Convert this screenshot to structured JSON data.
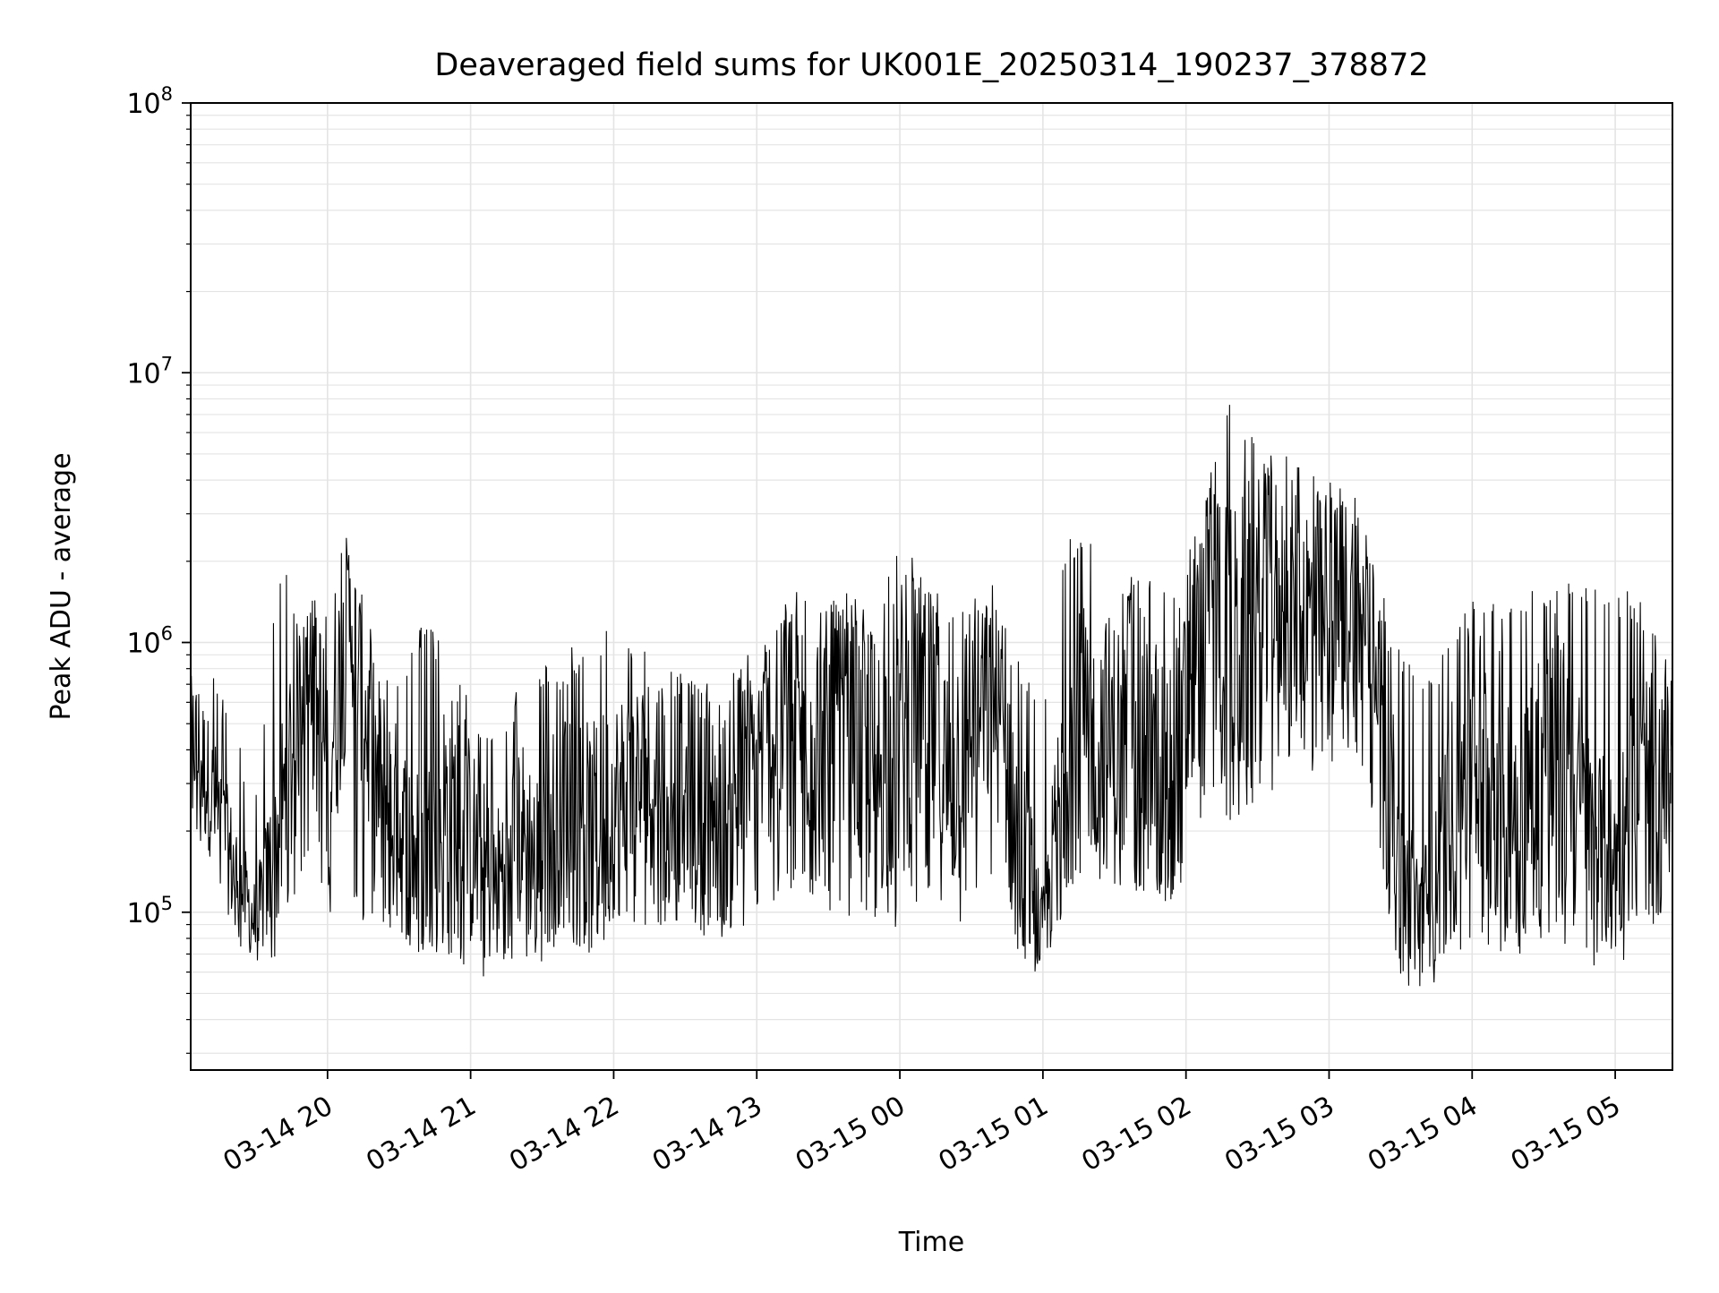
{
  "chart_data": {
    "type": "line",
    "title": "Deaveraged field sums for UK001E_20250314_190237_378872",
    "xlabel": "Time",
    "ylabel": "Peak ADU - average",
    "x_range": [
      "2025-03-14 19:02:37",
      "2025-03-15 05:24:00"
    ],
    "y_scale": "log",
    "ylim": [
      26000,
      100000000
    ],
    "grid": true,
    "line_color": "#000000",
    "x_ticks": [
      "03-14 20",
      "03-14 21",
      "03-14 22",
      "03-14 23",
      "03-15 00",
      "03-15 01",
      "03-15 02",
      "03-15 03",
      "03-15 04",
      "03-15 05"
    ],
    "x_tick_times": [
      "2025-03-14 20:00",
      "2025-03-14 21:00",
      "2025-03-14 22:00",
      "2025-03-14 23:00",
      "2025-03-15 00:00",
      "2025-03-15 01:00",
      "2025-03-15 02:00",
      "2025-03-15 03:00",
      "2025-03-15 04:00",
      "2025-03-15 05:00"
    ],
    "y_ticks": [
      {
        "base": "10",
        "exp": "5",
        "value": 100000
      },
      {
        "base": "10",
        "exp": "6",
        "value": 1000000
      },
      {
        "base": "10",
        "exp": "7",
        "value": 10000000
      },
      {
        "base": "10",
        "exp": "8",
        "value": 100000000
      }
    ],
    "series": [
      {
        "x": [
          "2025-03-14 19:02",
          "2025-03-14 19:10",
          "2025-03-14 19:20",
          "2025-03-14 19:30",
          "2025-03-14 19:40",
          "2025-03-14 19:50",
          "2025-03-14 20:00",
          "2025-03-14 20:10",
          "2025-03-14 20:20",
          "2025-03-14 20:30",
          "2025-03-14 20:40",
          "2025-03-14 20:50",
          "2025-03-14 21:00",
          "2025-03-14 21:10",
          "2025-03-14 21:20",
          "2025-03-14 21:30",
          "2025-03-14 21:40",
          "2025-03-14 21:50",
          "2025-03-14 22:00",
          "2025-03-14 22:10",
          "2025-03-14 22:20",
          "2025-03-14 22:30",
          "2025-03-14 22:40",
          "2025-03-14 22:50",
          "2025-03-14 23:00",
          "2025-03-14 23:10",
          "2025-03-14 23:20",
          "2025-03-14 23:30",
          "2025-03-14 23:40",
          "2025-03-14 23:50",
          "2025-03-15 00:00",
          "2025-03-15 00:10",
          "2025-03-15 00:20",
          "2025-03-15 00:30",
          "2025-03-15 00:40",
          "2025-03-15 00:50",
          "2025-03-15 01:00",
          "2025-03-15 01:10",
          "2025-03-15 01:20",
          "2025-03-15 01:30",
          "2025-03-15 01:40",
          "2025-03-15 01:50",
          "2025-03-15 02:00",
          "2025-03-15 02:10",
          "2025-03-15 02:20",
          "2025-03-15 02:30",
          "2025-03-15 02:40",
          "2025-03-15 02:50",
          "2025-03-15 03:00",
          "2025-03-15 03:10",
          "2025-03-15 03:20",
          "2025-03-15 03:30",
          "2025-03-15 03:40",
          "2025-03-15 03:50",
          "2025-03-15 04:00",
          "2025-03-15 04:10",
          "2025-03-15 04:20",
          "2025-03-15 04:30",
          "2025-03-15 04:40",
          "2025-03-15 04:50",
          "2025-03-15 05:00",
          "2025-03-15 05:10",
          "2025-03-15 05:20",
          "2025-03-15 05:24"
        ],
        "y": [
          500000,
          300000,
          150000,
          90000,
          200000,
          700000,
          400000,
          1200000,
          300000,
          200000,
          150000,
          250000,
          180000,
          120000,
          200000,
          150000,
          300000,
          200000,
          250000,
          280000,
          350000,
          300000,
          280000,
          200000,
          400000,
          450000,
          500000,
          450000,
          400000,
          350000,
          450000,
          600000,
          300000,
          500000,
          600000,
          200000,
          80000,
          400000,
          500000,
          400000,
          450000,
          350000,
          500000,
          1500000,
          900000,
          1200000,
          1500000,
          1200000,
          1300000,
          1400000,
          900000,
          120000,
          100000,
          200000,
          400000,
          300000,
          250000,
          350000,
          300000,
          180000,
          150000,
          300000,
          250000,
          500000
        ],
        "y_lower": [
          200000,
          150000,
          80000,
          60000,
          70000,
          150000,
          100000,
          100000,
          80000,
          70000,
          60000,
          70000,
          60000,
          55000,
          70000,
          60000,
          80000,
          70000,
          80000,
          80000,
          90000,
          90000,
          80000,
          70000,
          100000,
          110000,
          120000,
          100000,
          90000,
          80000,
          80000,
          120000,
          80000,
          100000,
          120000,
          60000,
          50000,
          100000,
          150000,
          100000,
          120000,
          100000,
          120000,
          300000,
          200000,
          250000,
          300000,
          300000,
          350000,
          400000,
          200000,
          50000,
          50000,
          60000,
          80000,
          70000,
          70000,
          80000,
          70000,
          60000,
          60000,
          80000,
          80000,
          150000
        ],
        "y_upper": [
          800000,
          1000000,
          500000,
          300000,
          2200000,
          1200000,
          2000000,
          2700000,
          1000000,
          700000,
          1300000,
          900000,
          600000,
          500000,
          700000,
          800000,
          1000000,
          900000,
          1300000,
          900000,
          1000000,
          900000,
          800000,
          800000,
          1000000,
          1400000,
          1700000,
          1600000,
          1500000,
          1300000,
          2300000,
          2000000,
          1500000,
          1600000,
          1700000,
          900000,
          600000,
          2400000,
          2800000,
          2100000,
          1700000,
          1800000,
          2000000,
          4500000,
          9800000,
          5400000,
          5000000,
          4800000,
          4000000,
          4400000,
          1900000,
          900000,
          800000,
          1000000,
          1500000,
          1600000,
          1500000,
          1600000,
          1700000,
          1600000,
          1600000,
          1500000,
          1000000,
          800000
        ]
      }
    ]
  }
}
